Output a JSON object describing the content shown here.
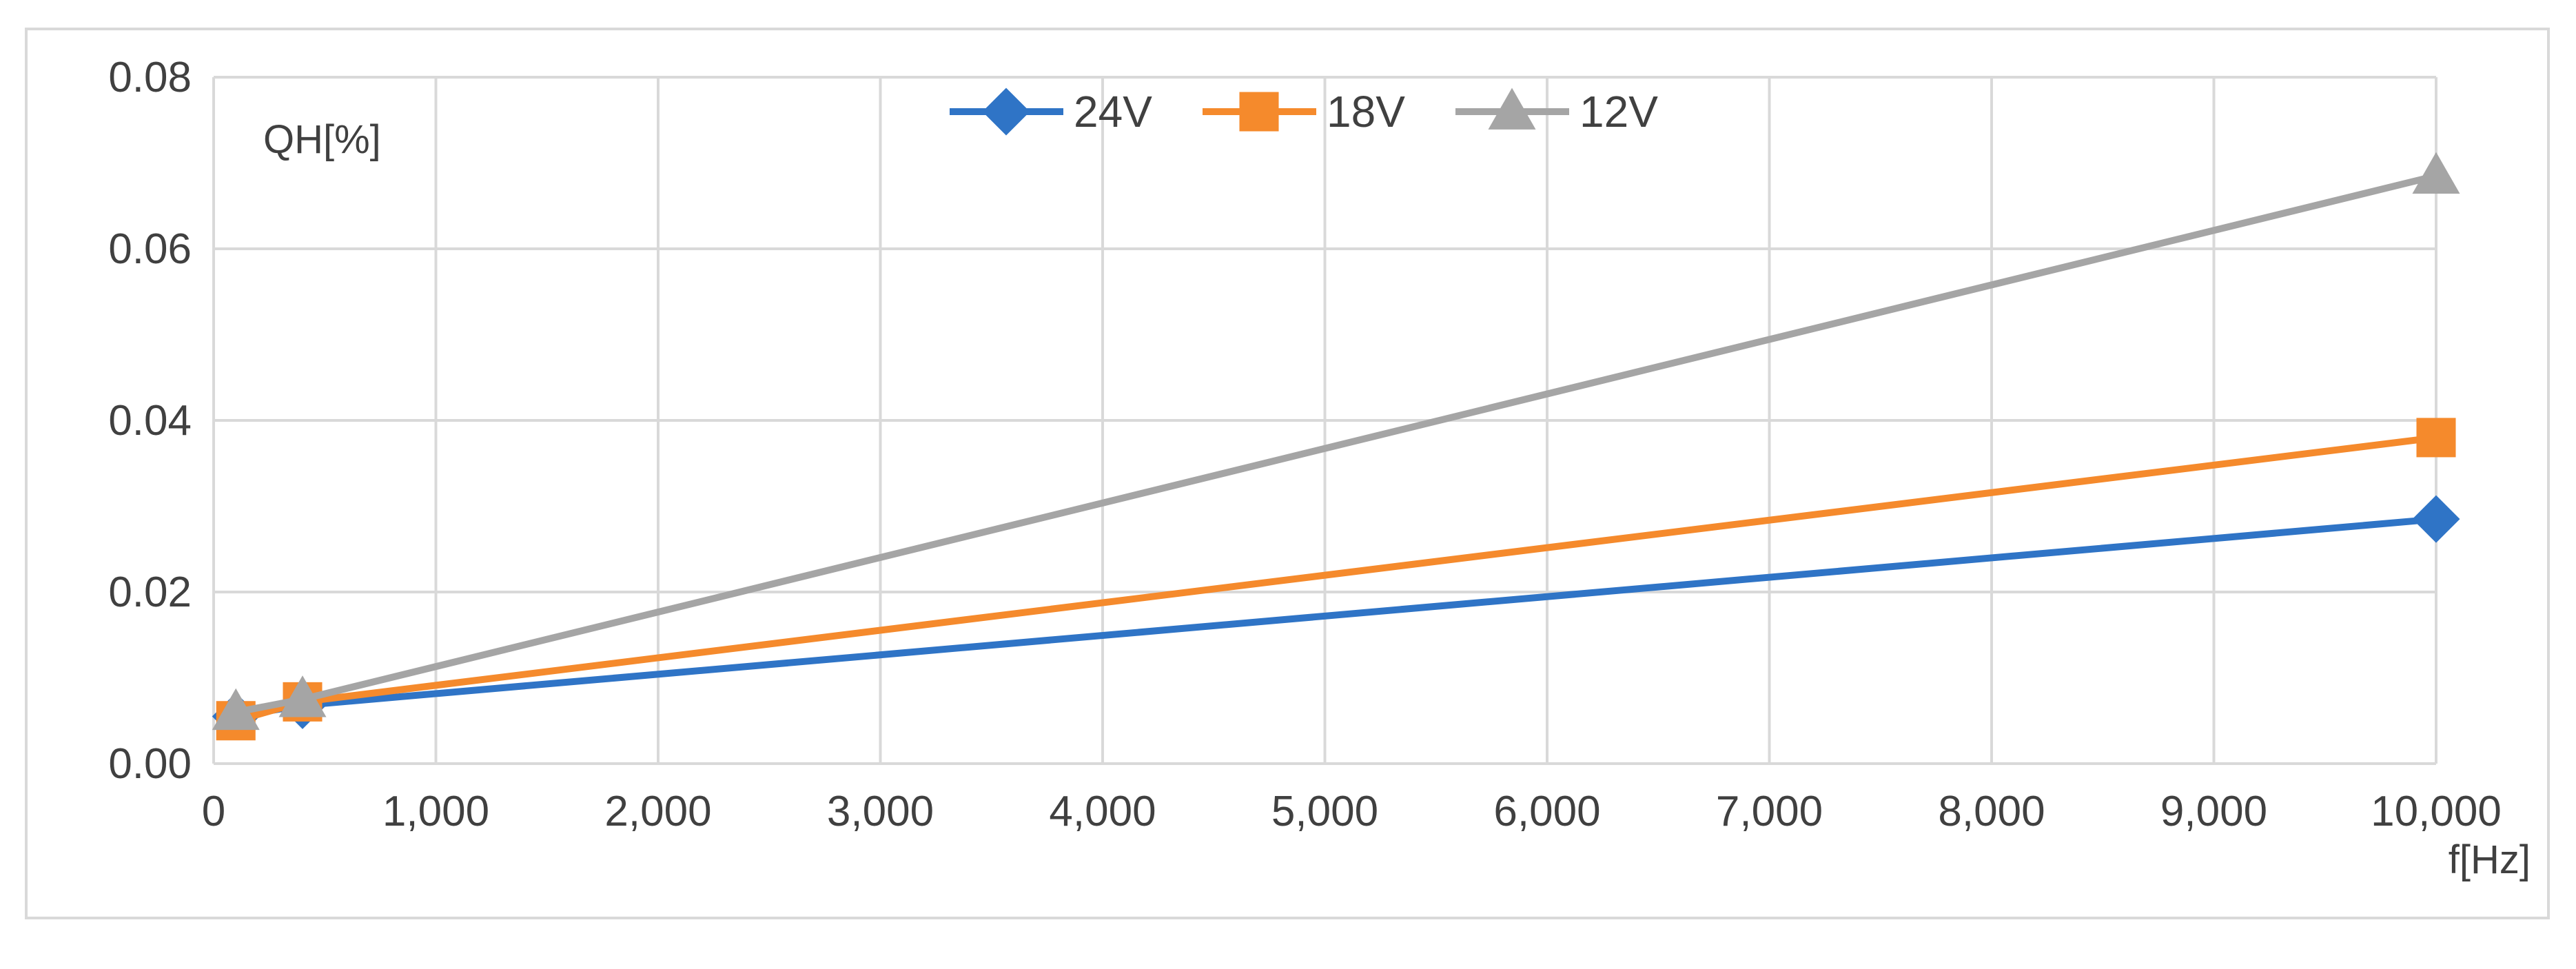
{
  "chart_data": {
    "type": "line",
    "title": "",
    "xlabel": "f[Hz]",
    "ylabel": "QH[%]",
    "xlim": [
      0,
      10000
    ],
    "ylim": [
      0,
      0.08
    ],
    "x_ticks": [
      0,
      1000,
      2000,
      3000,
      4000,
      5000,
      6000,
      7000,
      8000,
      9000,
      10000
    ],
    "x_tick_labels": [
      "0",
      "1,000",
      "2,000",
      "3,000",
      "4,000",
      "5,000",
      "6,000",
      "7,000",
      "8,000",
      "9,000",
      "10,000"
    ],
    "y_ticks": [
      0,
      0.02,
      0.04,
      0.06,
      0.08
    ],
    "y_tick_labels": [
      "0.00",
      "0.02",
      "0.04",
      "0.06",
      "0.08"
    ],
    "grid": true,
    "legend_position": "top-center",
    "series": [
      {
        "name": "24V",
        "color": "#2f74c6",
        "marker": "diamond",
        "x": [
          100,
          400,
          10000
        ],
        "y": [
          0.0055,
          0.0068,
          0.0285
        ]
      },
      {
        "name": "18V",
        "color": "#f58a2c",
        "marker": "square",
        "x": [
          100,
          400,
          10000
        ],
        "y": [
          0.005,
          0.0072,
          0.038
        ]
      },
      {
        "name": "12V",
        "color": "#a5a5a5",
        "marker": "triangle",
        "x": [
          100,
          400,
          10000
        ],
        "y": [
          0.006,
          0.0075,
          0.0685
        ]
      }
    ]
  }
}
